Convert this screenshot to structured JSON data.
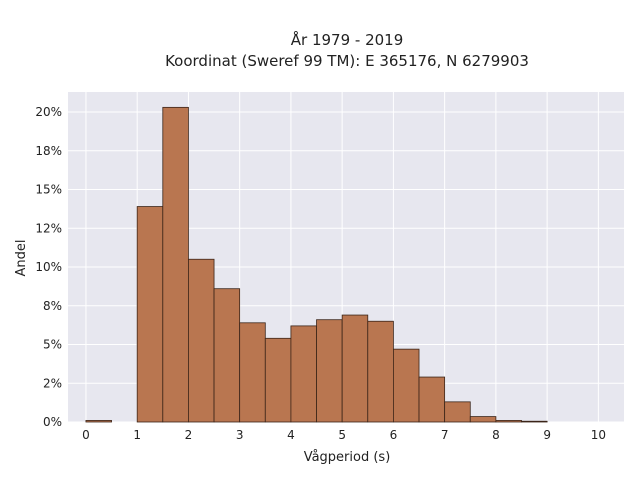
{
  "chart_data": {
    "type": "bar",
    "title_line1": "År 1979 - 2019",
    "title_line2": "Koordinat (Sweref 99 TM): E 365176, N 6279903",
    "xlabel": "Vågperiod (s)",
    "ylabel": "Andel",
    "xlim": [
      -0.35,
      10.5
    ],
    "ylim": [
      0,
      20
    ],
    "bin_width": 0.5,
    "bins": [
      {
        "x0": 0.0,
        "value": 0.1
      },
      {
        "x0": 0.5,
        "value": 0.0
      },
      {
        "x0": 1.0,
        "value": 13.9
      },
      {
        "x0": 1.5,
        "value": 20.3
      },
      {
        "x0": 2.0,
        "value": 10.5
      },
      {
        "x0": 2.5,
        "value": 8.6
      },
      {
        "x0": 3.0,
        "value": 6.4
      },
      {
        "x0": 3.5,
        "value": 5.4
      },
      {
        "x0": 4.0,
        "value": 6.2
      },
      {
        "x0": 4.5,
        "value": 6.6
      },
      {
        "x0": 5.0,
        "value": 6.9
      },
      {
        "x0": 5.5,
        "value": 6.5
      },
      {
        "x0": 6.0,
        "value": 4.7
      },
      {
        "x0": 6.5,
        "value": 2.9
      },
      {
        "x0": 7.0,
        "value": 1.3
      },
      {
        "x0": 7.5,
        "value": 0.35
      },
      {
        "x0": 8.0,
        "value": 0.1
      },
      {
        "x0": 8.5,
        "value": 0.05
      }
    ],
    "x_ticks": [
      0,
      1,
      2,
      3,
      4,
      5,
      6,
      7,
      8,
      9,
      10
    ],
    "y_ticks": [
      {
        "value": 0,
        "label": "0%"
      },
      {
        "value": 2.5,
        "label": "2%"
      },
      {
        "value": 5,
        "label": "5%"
      },
      {
        "value": 7.5,
        "label": "8%"
      },
      {
        "value": 10,
        "label": "10%"
      },
      {
        "value": 12.5,
        "label": "12%"
      },
      {
        "value": 15,
        "label": "15%"
      },
      {
        "value": 17.5,
        "label": "18%"
      },
      {
        "value": 20,
        "label": "20%"
      }
    ],
    "grid": true,
    "colors": {
      "bar_fill": "#b97650",
      "bar_edge": "#3b2418",
      "plot_bg": "#e7e7ef",
      "grid": "#ffffff"
    }
  }
}
